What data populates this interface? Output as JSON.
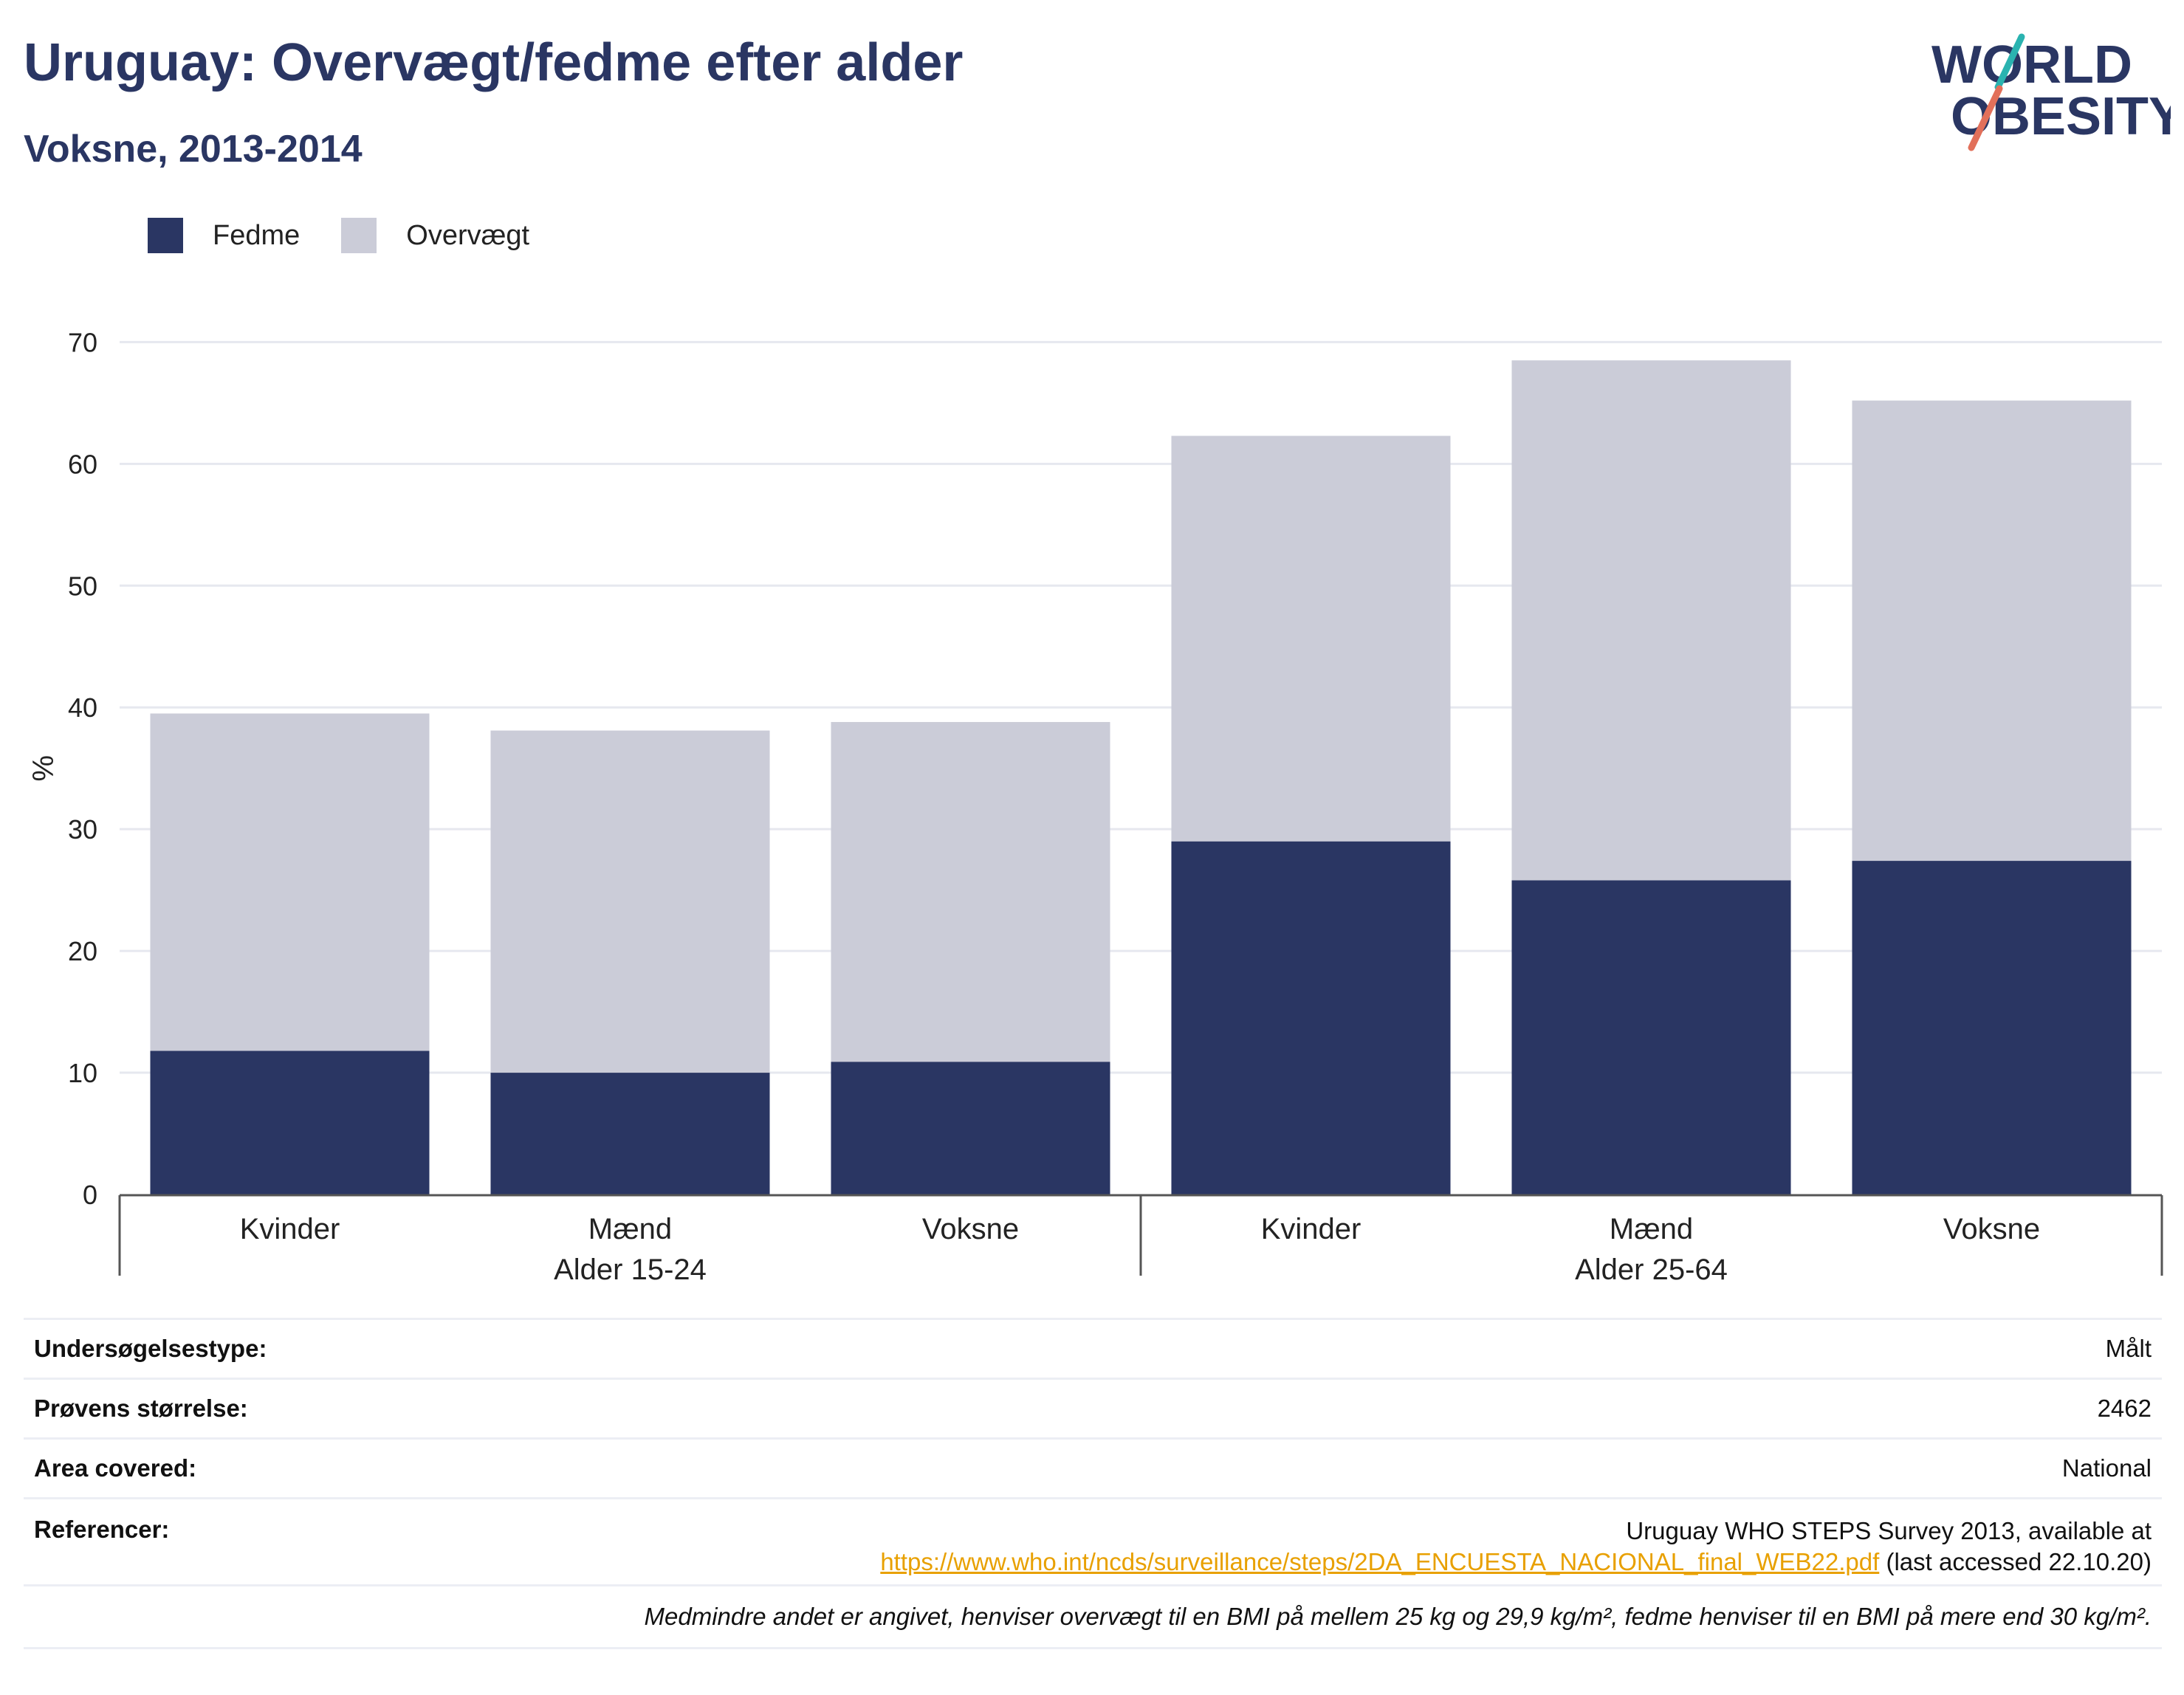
{
  "header": {
    "title": "Uruguay: Overvægt/fedme efter alder",
    "subtitle": "Voksne, 2013-2014"
  },
  "logo": {
    "line1": "WORLD",
    "line2": "OBESITY",
    "colors": {
      "text": "#2a3663",
      "slash_top": "#2ab3b0",
      "slash_bottom": "#e2705a"
    }
  },
  "legend": [
    {
      "label": "Fedme",
      "color": "#2a3663"
    },
    {
      "label": "Overvægt",
      "color": "#cbccd8"
    }
  ],
  "chart_data": {
    "type": "bar",
    "stacked": true,
    "title": "Uruguay: Overvægt/fedme efter alder",
    "subtitle": "Voksne, 2013-2014",
    "ylabel": "%",
    "ylim": [
      0,
      70
    ],
    "yticks": [
      0,
      10,
      20,
      30,
      40,
      50,
      60,
      70
    ],
    "grid": true,
    "legend_position": "top-left",
    "categories": [
      "Kvinder",
      "Mænd",
      "Voksne",
      "Kvinder",
      "Mænd",
      "Voksne"
    ],
    "groups": [
      {
        "label": "Alder 15-24",
        "categories": [
          "Kvinder",
          "Mænd",
          "Voksne"
        ]
      },
      {
        "label": "Alder 25-64",
        "categories": [
          "Kvinder",
          "Mænd",
          "Voksne"
        ]
      }
    ],
    "series": [
      {
        "name": "Fedme",
        "color": "#2a3663",
        "values": [
          11.8,
          10.0,
          10.9,
          29.0,
          25.8,
          27.4
        ]
      },
      {
        "name": "Overvægt",
        "color": "#cbccd8",
        "values": [
          27.7,
          28.1,
          27.9,
          33.3,
          42.7,
          37.8
        ]
      }
    ]
  },
  "meta": {
    "survey_type_label": "Undersøgelsestype:",
    "survey_type_value": "Målt",
    "sample_size_label": "Prøvens størrelse:",
    "sample_size_value": "2462",
    "area_label": "Area covered:",
    "area_value": "National",
    "references_label": "Referencer:",
    "references_text": "Uruguay WHO STEPS Survey 2013, available at",
    "references_link": "https://www.who.int/ncds/surveillance/steps/2DA_ENCUESTA_NACIONAL_final_WEB22.pdf",
    "references_suffix": " (last accessed 22.10.20)",
    "note": "Medmindre andet er angivet, henviser overvægt til en BMI på mellem 25 kg og 29,9 kg/m², fedme henviser til en BMI på mere end 30 kg/m²."
  }
}
